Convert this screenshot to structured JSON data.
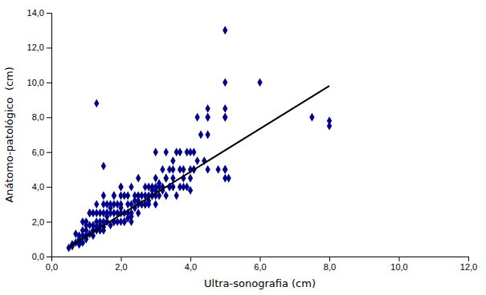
{
  "chart_data": {
    "type": "scatter",
    "xlabel": "Ultra-sonografia (cm)",
    "ylabel": "Anátomo-patológico  (cm)",
    "grid": false,
    "xlim": [
      0.0,
      12.0
    ],
    "ylim": [
      0.0,
      14.0
    ],
    "xticks": [
      {
        "value": 0.0,
        "label": "0,0"
      },
      {
        "value": 2.0,
        "label": "2,0"
      },
      {
        "value": 4.0,
        "label": "4,0"
      },
      {
        "value": 6.0,
        "label": "6,0"
      },
      {
        "value": 8.0,
        "label": "8,0"
      },
      {
        "value": 10.0,
        "label": "10,0"
      },
      {
        "value": 12.0,
        "label": "12,0"
      }
    ],
    "yticks": [
      {
        "value": 0.0,
        "label": "0,0"
      },
      {
        "value": 2.0,
        "label": "2,0"
      },
      {
        "value": 4.0,
        "label": "4,0"
      },
      {
        "value": 6.0,
        "label": "6,0"
      },
      {
        "value": 8.0,
        "label": "8,0"
      },
      {
        "value": 10.0,
        "label": "10,0"
      },
      {
        "value": 12.0,
        "label": "12,0"
      },
      {
        "value": 14.0,
        "label": "14,0"
      }
    ],
    "series": [
      {
        "type": "scatter",
        "color": "#00008B",
        "marker": "diamond",
        "x": [
          0.5,
          0.6,
          0.7,
          0.8,
          0.8,
          0.9,
          0.9,
          0.9,
          1.0,
          1.0,
          1.0,
          1.0,
          1.1,
          1.1,
          1.1,
          1.2,
          1.2,
          1.2,
          1.3,
          1.3,
          1.3,
          1.3,
          1.4,
          1.4,
          1.4,
          1.5,
          1.5,
          1.5,
          1.5,
          1.5,
          1.6,
          1.6,
          1.6,
          1.7,
          1.7,
          1.7,
          1.8,
          1.8,
          1.8,
          1.8,
          1.9,
          1.9,
          2.0,
          2.0,
          2.0,
          2.0,
          2.0,
          2.1,
          2.1,
          2.2,
          2.2,
          2.2,
          2.3,
          2.3,
          2.3,
          2.4,
          2.4,
          2.5,
          2.5,
          2.5,
          2.6,
          2.6,
          2.7,
          2.7,
          2.7,
          2.8,
          2.8,
          2.8,
          2.9,
          2.9,
          3.0,
          3.0,
          3.0,
          3.0,
          3.1,
          3.1,
          3.2,
          3.2,
          3.3,
          3.3,
          3.4,
          3.4,
          3.5,
          3.5,
          3.5,
          3.6,
          3.6,
          3.7,
          3.7,
          3.8,
          3.8,
          3.9,
          4.0,
          4.0,
          4.0,
          4.1,
          4.1,
          4.2,
          4.3,
          4.5,
          4.5,
          4.5,
          4.5,
          4.8,
          5.0,
          5.0,
          5.0,
          5.0,
          5.0,
          5.0,
          5.1,
          6.0,
          7.5,
          8.0,
          8.0,
          0.7,
          0.8,
          0.9,
          1.0,
          1.1,
          1.2,
          1.3,
          1.4,
          1.5,
          1.6,
          1.7,
          1.8,
          1.9,
          2.0,
          2.1,
          2.2,
          2.3,
          2.4,
          2.5,
          2.6,
          2.7,
          2.8,
          2.9,
          3.0,
          3.1,
          3.2,
          3.3,
          3.5,
          3.8,
          4.0,
          4.2,
          4.5,
          5.0,
          0.6,
          1.0,
          1.5,
          2.0,
          1.3,
          1.8,
          2.3,
          2.7,
          3.0,
          3.4,
          3.9,
          4.4,
          5.0,
          0.8,
          1.2,
          1.6,
          2.1,
          2.5,
          2.9,
          3.3,
          3.7,
          4.1,
          5.0
        ],
        "values": [
          0.5,
          0.7,
          0.8,
          0.9,
          1.2,
          0.8,
          1.2,
          2.0,
          1.0,
          1.5,
          1.8,
          2.0,
          1.3,
          1.8,
          2.5,
          1.2,
          1.8,
          2.5,
          1.5,
          2.0,
          2.5,
          3.0,
          1.5,
          2.0,
          2.5,
          1.5,
          2.0,
          2.5,
          3.0,
          3.5,
          2.0,
          2.5,
          3.0,
          1.8,
          2.5,
          3.0,
          2.0,
          2.5,
          3.0,
          3.5,
          2.5,
          3.0,
          2.0,
          2.5,
          3.0,
          3.5,
          4.0,
          2.5,
          3.5,
          2.5,
          3.0,
          3.5,
          2.5,
          3.0,
          4.0,
          2.8,
          3.5,
          2.5,
          3.0,
          4.5,
          3.0,
          3.5,
          3.0,
          3.5,
          4.0,
          3.0,
          3.5,
          4.0,
          3.5,
          4.0,
          3.0,
          3.5,
          4.0,
          6.0,
          3.5,
          4.0,
          4.0,
          5.0,
          3.5,
          6.0,
          4.0,
          5.0,
          4.0,
          5.0,
          4.5,
          3.5,
          6.0,
          4.0,
          5.0,
          4.5,
          5.0,
          6.0,
          4.5,
          5.0,
          6.0,
          5.0,
          6.0,
          5.5,
          7.0,
          5.0,
          8.0,
          8.5,
          8.0,
          5.0,
          5.0,
          8.0,
          8.0,
          5.0,
          4.5,
          10.0,
          4.5,
          10.0,
          8.0,
          7.5,
          7.8,
          1.3,
          0.7,
          1.5,
          1.2,
          2.5,
          1.5,
          8.8,
          1.8,
          5.2,
          2.3,
          2.8,
          3.5,
          2.0,
          4.0,
          2.0,
          2.2,
          2.0,
          3.2,
          3.5,
          3.0,
          3.0,
          3.2,
          3.8,
          4.5,
          4.2,
          3.8,
          4.5,
          5.5,
          4.0,
          3.8,
          8.0,
          7.0,
          8.5,
          0.6,
          1.2,
          1.7,
          2.8,
          1.7,
          2.0,
          2.3,
          3.0,
          3.8,
          4.0,
          4.0,
          5.5,
          5.0,
          1.0,
          1.5,
          2.5,
          2.0,
          3.2,
          3.5,
          4.5,
          6.0,
          5.0,
          13.0
        ]
      },
      {
        "type": "line",
        "color": "#000000",
        "line_style": "solid",
        "x": [
          0.5,
          8.0
        ],
        "values": [
          0.55,
          9.8
        ]
      }
    ]
  }
}
